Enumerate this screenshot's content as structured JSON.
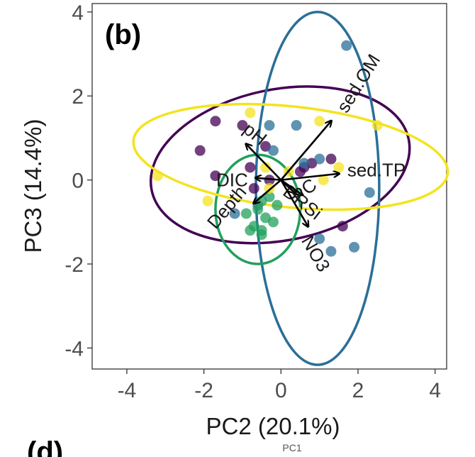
{
  "chart_data": {
    "type": "scatter",
    "title": "",
    "panel_label": "(b)",
    "next_panel_label": "(d)",
    "next_panel_axis_hint": "PC1",
    "xlabel": "PC2 (20.1%)",
    "ylabel": "PC3 (14.4%)",
    "xlim": [
      -4.9,
      4.3
    ],
    "ylim": [
      -4.5,
      4.2
    ],
    "xticks": [
      -4,
      -2,
      0,
      2,
      4
    ],
    "yticks": [
      -4,
      -2,
      0,
      2,
      4
    ],
    "grid": false,
    "colors": {
      "purple": "#440154",
      "blue": "#2a6f97",
      "green": "#21a05c",
      "yellow": "#f4e31e"
    },
    "groups": [
      {
        "color_key": "purple",
        "points": [
          [
            -1.7,
            1.4
          ],
          [
            -2.1,
            0.7
          ],
          [
            -1.0,
            1.3
          ],
          [
            -0.8,
            0.3
          ],
          [
            -1.7,
            0.1
          ],
          [
            -0.4,
            0.8
          ],
          [
            0.6,
            0.3
          ],
          [
            1.3,
            0.5
          ],
          [
            -0.7,
            -0.2
          ],
          [
            1.6,
            -1.1
          ],
          [
            0.5,
            0.2
          ],
          [
            -0.3,
            0.0
          ],
          [
            0.8,
            0.4
          ]
        ],
        "ellipse": {
          "cx": -0.02,
          "cy": 0.36,
          "rx": 3.4,
          "ry": 1.8,
          "angle_deg": -11
        }
      },
      {
        "color_key": "blue",
        "points": [
          [
            1.7,
            3.2
          ],
          [
            -0.3,
            1.3
          ],
          [
            0.4,
            1.3
          ],
          [
            0.6,
            0.4
          ],
          [
            1.0,
            0.5
          ],
          [
            1.9,
            -1.6
          ],
          [
            2.3,
            -0.3
          ],
          [
            1.3,
            -1.7
          ],
          [
            -0.2,
            0.7
          ],
          [
            -0.6,
            -0.6
          ],
          [
            -1.2,
            -0.8
          ],
          [
            1.0,
            -1.4
          ]
        ],
        "ellipse": {
          "cx": 0.95,
          "cy": -0.2,
          "rx": 1.6,
          "ry": 4.2,
          "angle_deg": 0
        }
      },
      {
        "color_key": "green",
        "points": [
          [
            -0.9,
            -0.8
          ],
          [
            -0.5,
            -0.5
          ],
          [
            -0.3,
            -0.4
          ],
          [
            -0.7,
            -1.1
          ],
          [
            -0.5,
            -1.3
          ],
          [
            -0.5,
            -1.2
          ],
          [
            -0.8,
            -1.2
          ],
          [
            -0.2,
            -1.0
          ],
          [
            -0.1,
            -0.6
          ],
          [
            -0.6,
            -0.7
          ],
          [
            -0.4,
            -0.9
          ]
        ],
        "ellipse": {
          "cx": -0.6,
          "cy": -0.7,
          "rx": 1.1,
          "ry": 1.3,
          "angle_deg": 0
        }
      },
      {
        "color_key": "yellow",
        "points": [
          [
            -3.2,
            0.1
          ],
          [
            -0.8,
            1.6
          ],
          [
            1.0,
            1.4
          ],
          [
            2.5,
            1.3
          ],
          [
            1.5,
            0.3
          ],
          [
            -0.4,
            0.3
          ],
          [
            -1.9,
            -0.5
          ],
          [
            0.2,
            0.2
          ],
          [
            1.1,
            0.0
          ],
          [
            -0.3,
            -0.2
          ]
        ],
        "ellipse": {
          "cx": 0.25,
          "cy": 0.55,
          "rx": 4.1,
          "ry": 1.2,
          "angle_deg": 6
        }
      }
    ],
    "loadings": [
      {
        "label": "sed.OM",
        "x": 1.3,
        "y": 1.4
      },
      {
        "label": "sed.TP",
        "x": 1.5,
        "y": 0.15
      },
      {
        "label": "pH",
        "x": -0.9,
        "y": 0.85
      },
      {
        "label": "DIC",
        "x": -0.65,
        "y": 0.05
      },
      {
        "label": "Depth",
        "x": -0.7,
        "y": -0.55
      },
      {
        "label": "DRSi",
        "x": 0.35,
        "y": -0.3
      },
      {
        "label": "PC",
        "x": 0.55,
        "y": -0.35
      },
      {
        "label": "NO3",
        "x": 0.7,
        "y": -1.1
      }
    ]
  }
}
